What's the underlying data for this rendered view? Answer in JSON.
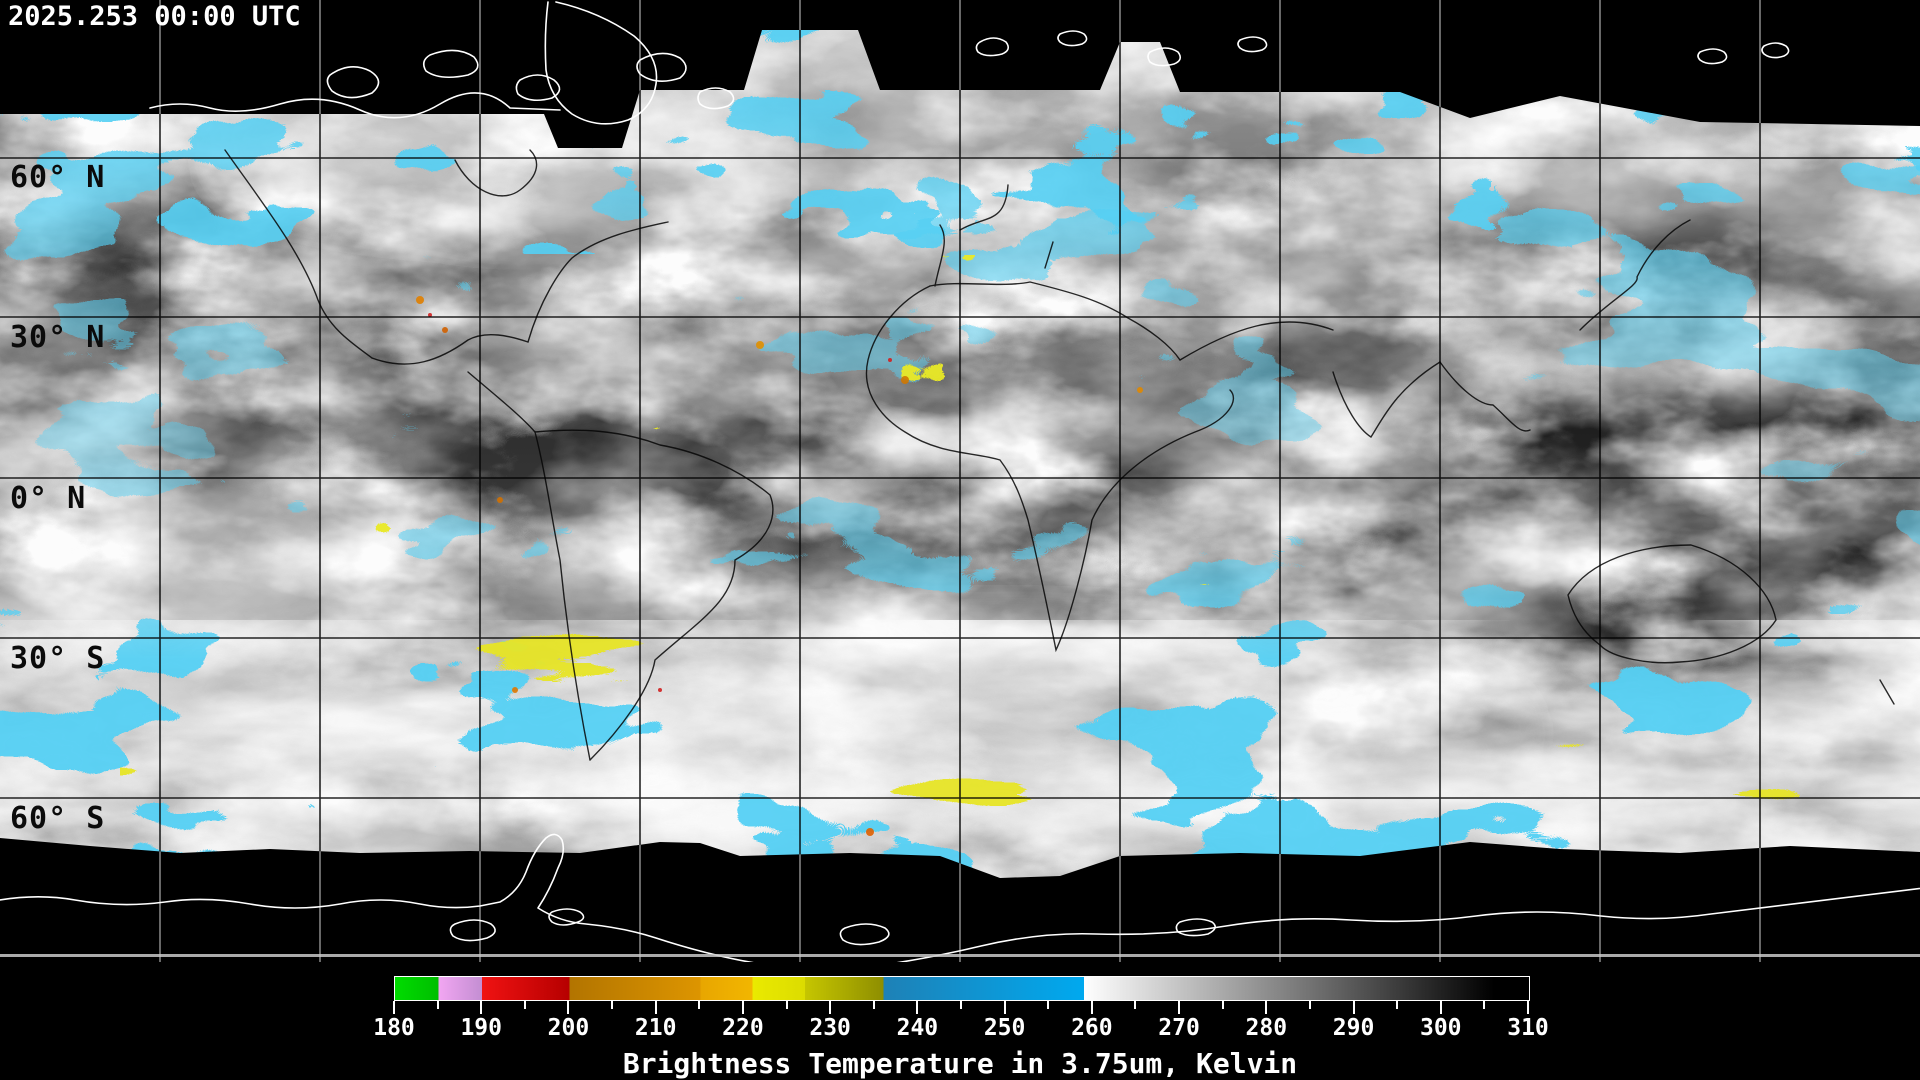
{
  "header": {
    "timestamp": "2025.253 00:00 UTC"
  },
  "map": {
    "latitude_labels": [
      {
        "label": "60° N"
      },
      {
        "label": "30° N"
      },
      {
        "label": "0° N"
      },
      {
        "label": "30° S"
      },
      {
        "label": "60° S"
      }
    ],
    "grid_longitude_spacing_deg": 30,
    "grid_latitude_spacing_deg": 30,
    "cloud_colors": {
      "cold_cloud_blue": "#18a0e6",
      "very_cold_yellow": "#d2d200",
      "extreme_orange": "#e08000"
    }
  },
  "colorbar": {
    "title": "Brightness Temperature in 3.75um, Kelvin",
    "units": "Kelvin",
    "min": 180,
    "max": 310,
    "minor_tick_step": 5,
    "major_ticks": [
      "180",
      "190",
      "200",
      "210",
      "220",
      "230",
      "240",
      "250",
      "260",
      "270",
      "280",
      "290",
      "300",
      "310"
    ],
    "segments": [
      {
        "from": 180,
        "to": 185,
        "color_start": "#00dc00",
        "color_end": "#00be00"
      },
      {
        "from": 185,
        "to": 190,
        "color_start": "#f2a6f2",
        "color_end": "#c38ed2"
      },
      {
        "from": 190,
        "to": 200,
        "color_start": "#f01212",
        "color_end": "#b60000"
      },
      {
        "from": 200,
        "to": 215,
        "color_start": "#b27400",
        "color_end": "#dd9500"
      },
      {
        "from": 215,
        "to": 221,
        "color_start": "#e8a600",
        "color_end": "#f2b600"
      },
      {
        "from": 221,
        "to": 227,
        "color_start": "#eaea00",
        "color_end": "#dcdc00"
      },
      {
        "from": 227,
        "to": 236,
        "color_start": "#c6c600",
        "color_end": "#8e8e00"
      },
      {
        "from": 236,
        "to": 259,
        "color_start": "#1e81b6",
        "color_end": "#00a9ef"
      },
      {
        "from": 259,
        "to": 306,
        "color_start": "#ffffff",
        "color_end": "#000000"
      },
      {
        "from": 306,
        "to": 310,
        "color_start": "#000000",
        "color_end": "#000000"
      }
    ]
  }
}
